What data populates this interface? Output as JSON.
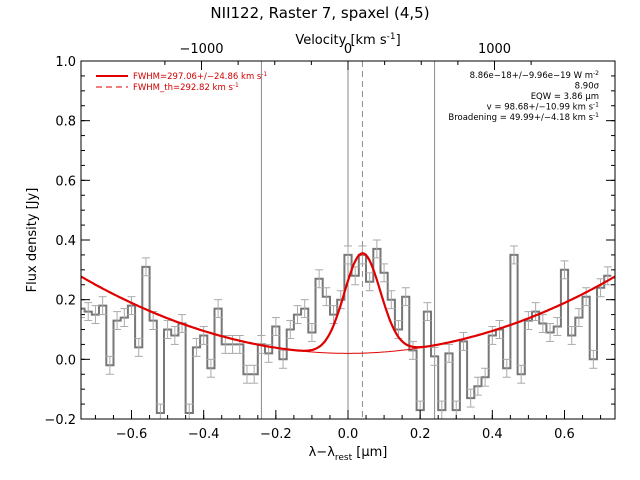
{
  "chart_data": {
    "type": "line",
    "title": "NII122, Raster 7, spaxel (4,5)",
    "xlabel": "λ−λrest [μm]",
    "xlabel_main": "λ−λ",
    "xlabel_sub": "rest",
    "xlabel_unit": " [μm]",
    "ylabel": "Flux density [Jy]",
    "top_axis_label": "Velocity [km s",
    "top_axis_label_sup": "-1",
    "top_axis_label_end": "]",
    "xlim": [
      -0.74,
      0.74
    ],
    "ylim": [
      -0.2,
      1.0
    ],
    "x_ticks": [
      -0.6,
      -0.4,
      -0.2,
      0.0,
      0.2,
      0.4,
      0.6
    ],
    "x_tick_labels": [
      "−0.6",
      "−0.4",
      "−0.2",
      "0.0",
      "0.2",
      "0.4",
      "0.6"
    ],
    "y_ticks": [
      -0.2,
      0.0,
      0.2,
      0.4,
      0.6,
      0.8,
      1.0
    ],
    "y_tick_labels": [
      "−0.2",
      "0.0",
      "0.2",
      "0.4",
      "0.6",
      "0.8",
      "1.0"
    ],
    "top_ticks_x": [
      -0.406,
      0.0,
      0.406
    ],
    "top_tick_labels": [
      "−1000",
      "0",
      "1000"
    ],
    "vertical_lines_solid": [
      -0.24,
      0.0,
      0.24
    ],
    "vertical_line_dashed": 0.04,
    "legend": [
      {
        "label": "FWHM=297.06+/−24.86 km s",
        "sup": "-1",
        "style": "solid"
      },
      {
        "label": "FWHM_th=292.82 km s",
        "sup": "-1",
        "style": "dashed"
      }
    ],
    "annotations": [
      {
        "text": "8.86e−18+/−9.96e−19 W m",
        "sup": "-2"
      },
      {
        "text": "8.90σ",
        "sup": ""
      },
      {
        "text": "EQW = 3.86 μm",
        "sup": ""
      },
      {
        "text": "v = 98.68+/−10.99 km s",
        "sup": "-1"
      },
      {
        "text": "Broadening = 49.99+/−4.18 km s",
        "sup": "-1"
      }
    ],
    "spectrum": {
      "x": [
        -0.74,
        -0.72,
        -0.7,
        -0.68,
        -0.66,
        -0.64,
        -0.62,
        -0.6,
        -0.58,
        -0.56,
        -0.54,
        -0.52,
        -0.5,
        -0.48,
        -0.46,
        -0.44,
        -0.42,
        -0.4,
        -0.38,
        -0.36,
        -0.34,
        -0.32,
        -0.3,
        -0.28,
        -0.26,
        -0.24,
        -0.22,
        -0.2,
        -0.18,
        -0.16,
        -0.14,
        -0.12,
        -0.1,
        -0.08,
        -0.06,
        -0.04,
        -0.02,
        0.0,
        0.02,
        0.04,
        0.06,
        0.08,
        0.1,
        0.12,
        0.14,
        0.16,
        0.18,
        0.2,
        0.22,
        0.24,
        0.26,
        0.28,
        0.3,
        0.32,
        0.34,
        0.36,
        0.38,
        0.4,
        0.42,
        0.44,
        0.46,
        0.48,
        0.5,
        0.52,
        0.54,
        0.56,
        0.58,
        0.6,
        0.62,
        0.64,
        0.66,
        0.68,
        0.7,
        0.72
      ],
      "y": [
        0.17,
        0.16,
        0.15,
        0.18,
        -0.02,
        0.13,
        0.14,
        0.18,
        0.04,
        0.31,
        0.13,
        -0.18,
        0.1,
        0.08,
        0.12,
        -0.18,
        0.04,
        0.08,
        -0.03,
        0.17,
        0.05,
        0.05,
        0.05,
        -0.05,
        -0.05,
        0.05,
        0.02,
        0.11,
        0.0,
        0.1,
        0.15,
        0.17,
        0.09,
        0.27,
        0.21,
        0.15,
        0.2,
        0.35,
        0.28,
        0.35,
        0.26,
        0.37,
        0.29,
        0.2,
        0.1,
        0.21,
        0.03,
        -0.17,
        0.16,
        0.01,
        -0.17,
        0.02,
        -0.17,
        0.06,
        -0.13,
        -0.09,
        -0.06,
        0.08,
        0.1,
        -0.03,
        0.35,
        -0.05,
        0.13,
        0.16,
        0.12,
        0.09,
        0.11,
        0.3,
        0.08,
        0.14,
        0.21,
        0.0,
        0.24,
        0.28
      ],
      "err": 0.03
    },
    "fit": {
      "type": "gaussian_plus_baseline",
      "baseline_curvature": 0.47,
      "baseline_center": 0.0,
      "baseline_offset": 0.02,
      "amplitude": 0.335,
      "center": 0.04,
      "sigma": 0.05
    }
  }
}
